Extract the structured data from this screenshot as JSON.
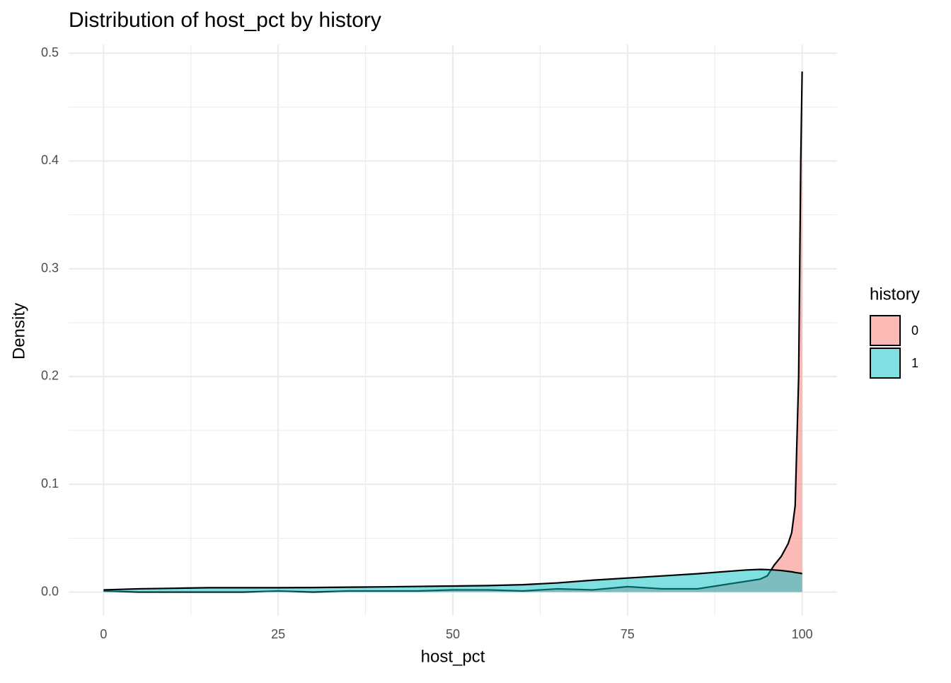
{
  "chart_data": {
    "type": "area",
    "title": "Distribution of host_pct by history",
    "x_label": "host_pct",
    "y_label": "Density",
    "legend_title": "history",
    "x": [
      0,
      5,
      10,
      15,
      20,
      25,
      30,
      35,
      40,
      45,
      50,
      55,
      60,
      65,
      70,
      75,
      80,
      85,
      90,
      92,
      94,
      95,
      96,
      97,
      98,
      98.5,
      99,
      99.5,
      99.8,
      100
    ],
    "series": [
      {
        "name": "0",
        "color": "#F8766D",
        "values": [
          0.001,
          0,
          0,
          0,
          0,
          0.001,
          0,
          0.001,
          0.001,
          0.001,
          0.002,
          0.002,
          0.001,
          0.003,
          0.002,
          0.005,
          0.003,
          0.003,
          0.008,
          0.01,
          0.012,
          0.015,
          0.025,
          0.033,
          0.045,
          0.055,
          0.08,
          0.2,
          0.4,
          0.483
        ]
      },
      {
        "name": "1",
        "color": "#00BFC4",
        "values": [
          0.002,
          0.003,
          0.0035,
          0.004,
          0.004,
          0.004,
          0.0042,
          0.0045,
          0.0048,
          0.0052,
          0.0056,
          0.006,
          0.0068,
          0.0085,
          0.011,
          0.013,
          0.015,
          0.017,
          0.0195,
          0.0205,
          0.021,
          0.0208,
          0.0205,
          0.02,
          0.0192,
          0.0188,
          0.0182,
          0.0177,
          0.0174,
          0.017
        ]
      }
    ],
    "xlim": [
      -5,
      105
    ],
    "ylim": [
      -0.022,
      0.508
    ],
    "xticks": [
      0,
      25,
      50,
      75,
      100
    ],
    "yticks": [
      {
        "value": 0,
        "label": "0.0"
      },
      0.1,
      0.2,
      0.3,
      0.4,
      0.5
    ],
    "grid": true,
    "legend_position": "right"
  }
}
